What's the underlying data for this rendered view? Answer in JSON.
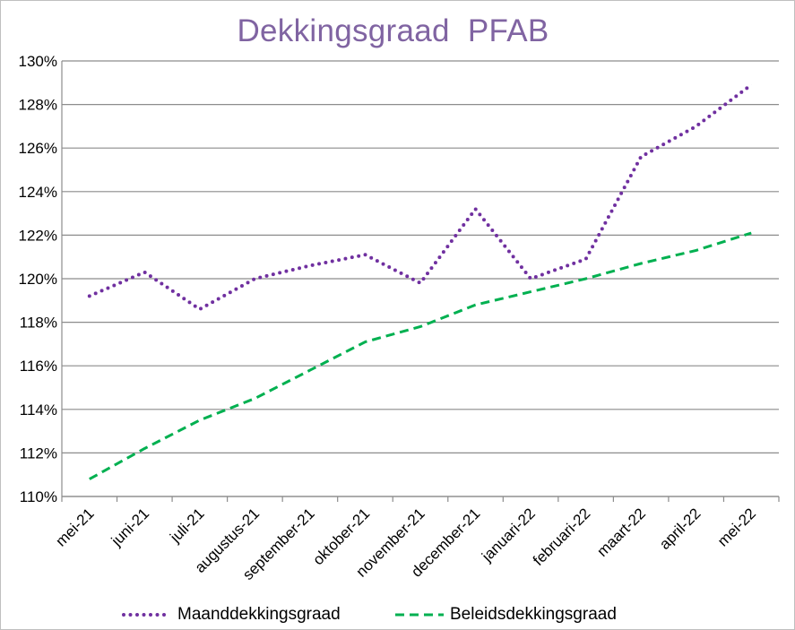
{
  "chart_data": {
    "type": "line",
    "title": "Dekkingsgraad  PFAB",
    "categories": [
      "mei-21",
      "juni-21",
      "juli-21",
      "augustus-21",
      "september-21",
      "oktober-21",
      "november-21",
      "december-21",
      "januari-22",
      "februari-22",
      "maart-22",
      "april-22",
      "mei-22"
    ],
    "y_ticks": [
      "110%",
      "112%",
      "114%",
      "116%",
      "118%",
      "120%",
      "122%",
      "124%",
      "126%",
      "128%",
      "130%"
    ],
    "ylim": [
      110,
      130
    ],
    "y_unit": "%",
    "grid": "horizontal",
    "legend_position": "bottom",
    "series": [
      {
        "name": "Maanddekkingsgraad",
        "values": [
          119.2,
          120.3,
          118.6,
          120.0,
          120.6,
          121.1,
          119.8,
          123.2,
          120.0,
          120.9,
          125.6,
          127.0,
          128.9
        ],
        "color": "#7030a0",
        "style": "dotted"
      },
      {
        "name": "Beleidsdekkingsgraad",
        "values": [
          110.8,
          112.2,
          113.5,
          114.5,
          115.8,
          117.1,
          117.8,
          118.8,
          119.4,
          120.0,
          120.7,
          121.3,
          122.1
        ],
        "color": "#00b050",
        "style": "dashed"
      }
    ]
  }
}
